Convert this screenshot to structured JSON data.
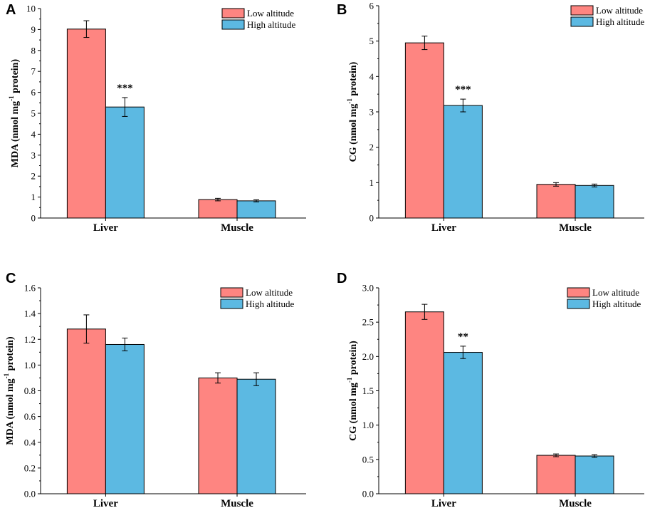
{
  "colors": {
    "low": "#fe8581",
    "high": "#5cb9e2",
    "axis": "#000000"
  },
  "chart_data": [
    {
      "type": "bar",
      "panel_label": "A",
      "categories": [
        "Liver",
        "Muscle"
      ],
      "ylabel_main": "MDA (nmol mg",
      "ylabel_sup": "-1",
      "ylabel_tail": " protein)",
      "ylim": [
        0,
        10
      ],
      "yticks": [
        0,
        1,
        2,
        3,
        4,
        5,
        6,
        7,
        8,
        9,
        10
      ],
      "tick_labels": [
        "0",
        "1",
        "2",
        "3",
        "4",
        "5",
        "6",
        "7",
        "8",
        "9",
        "10"
      ],
      "legend_position": "top-right",
      "series": [
        {
          "name": "Low altitude",
          "values": [
            9.02,
            0.88
          ],
          "errors": [
            0.4,
            0.06
          ]
        },
        {
          "name": "High altitude",
          "values": [
            5.3,
            0.82
          ],
          "errors": [
            0.45,
            0.05
          ]
        }
      ],
      "annotations": [
        {
          "category": "Liver",
          "series": 1,
          "text": "***"
        }
      ]
    },
    {
      "type": "bar",
      "panel_label": "B",
      "categories": [
        "Liver",
        "Muscle"
      ],
      "ylabel_main": "CG (nmol mg",
      "ylabel_sup": "-1",
      "ylabel_tail": " protein)",
      "ylim": [
        0,
        6
      ],
      "yticks": [
        0,
        1,
        2,
        3,
        4,
        5,
        6
      ],
      "tick_labels": [
        "0",
        "1",
        "2",
        "3",
        "4",
        "5",
        "6"
      ],
      "legend_position": "top-right",
      "series": [
        {
          "name": "Low altitude",
          "values": [
            4.95,
            0.95
          ],
          "errors": [
            0.19,
            0.05
          ]
        },
        {
          "name": "High altitude",
          "values": [
            3.18,
            0.92
          ],
          "errors": [
            0.18,
            0.04
          ]
        }
      ],
      "annotations": [
        {
          "category": "Liver",
          "series": 1,
          "text": "***"
        }
      ]
    },
    {
      "type": "bar",
      "panel_label": "C",
      "categories": [
        "Liver",
        "Muscle"
      ],
      "ylabel_main": "MDA (nmol mg",
      "ylabel_sup": "-1",
      "ylabel_tail": " protein)",
      "ylim": [
        0,
        1.6
      ],
      "yticks": [
        0,
        0.2,
        0.4,
        0.6,
        0.8,
        1.0,
        1.2,
        1.4,
        1.6
      ],
      "tick_labels": [
        "0.0",
        "0.2",
        "0.4",
        "0.6",
        "0.8",
        "1.0",
        "1.2",
        "1.4",
        "1.6"
      ],
      "legend_position": "top-right",
      "series": [
        {
          "name": "Low altitude",
          "values": [
            1.28,
            0.9
          ],
          "errors": [
            0.11,
            0.04
          ]
        },
        {
          "name": "High altitude",
          "values": [
            1.16,
            0.89
          ],
          "errors": [
            0.05,
            0.05
          ]
        }
      ],
      "annotations": []
    },
    {
      "type": "bar",
      "panel_label": "D",
      "categories": [
        "Liver",
        "Muscle"
      ],
      "ylabel_main": "CG (nmol mg",
      "ylabel_sup": "-1",
      "ylabel_tail": " protein)",
      "ylim": [
        0,
        3.0
      ],
      "yticks": [
        0,
        0.5,
        1.0,
        1.5,
        2.0,
        2.5,
        3.0
      ],
      "tick_labels": [
        "0.0",
        "0.5",
        "1.0",
        "1.5",
        "2.0",
        "2.5",
        "3.0"
      ],
      "legend_position": "top-right",
      "series": [
        {
          "name": "Low altitude",
          "values": [
            2.65,
            0.56
          ],
          "errors": [
            0.11,
            0.02
          ]
        },
        {
          "name": "High altitude",
          "values": [
            2.06,
            0.55
          ],
          "errors": [
            0.09,
            0.02
          ]
        }
      ],
      "annotations": [
        {
          "category": "Liver",
          "series": 1,
          "text": "**"
        }
      ]
    }
  ]
}
